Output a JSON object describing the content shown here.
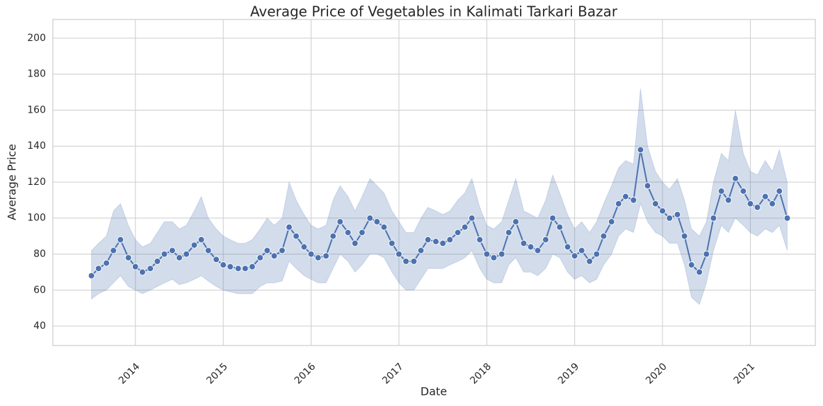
{
  "chart_data": {
    "type": "line",
    "title": "Average Price of Vegetables in Kalimati Tarkari Bazar",
    "xlabel": "Date",
    "ylabel": "Average Price",
    "x": [
      2013.5,
      2013.58,
      2013.67,
      2013.75,
      2013.83,
      2013.92,
      2014.0,
      2014.08,
      2014.17,
      2014.25,
      2014.33,
      2014.42,
      2014.5,
      2014.58,
      2014.67,
      2014.75,
      2014.83,
      2014.92,
      2015.0,
      2015.08,
      2015.17,
      2015.25,
      2015.33,
      2015.42,
      2015.5,
      2015.58,
      2015.67,
      2015.75,
      2015.83,
      2015.92,
      2016.0,
      2016.08,
      2016.17,
      2016.25,
      2016.33,
      2016.42,
      2016.5,
      2016.58,
      2016.67,
      2016.75,
      2016.83,
      2016.92,
      2017.0,
      2017.08,
      2017.17,
      2017.25,
      2017.33,
      2017.42,
      2017.5,
      2017.58,
      2017.67,
      2017.75,
      2017.83,
      2017.92,
      2018.0,
      2018.08,
      2018.17,
      2018.25,
      2018.33,
      2018.42,
      2018.5,
      2018.58,
      2018.67,
      2018.75,
      2018.83,
      2018.92,
      2019.0,
      2019.08,
      2019.17,
      2019.25,
      2019.33,
      2019.42,
      2019.5,
      2019.58,
      2019.67,
      2019.75,
      2019.83,
      2019.92,
      2020.0,
      2020.08,
      2020.17,
      2020.25,
      2020.33,
      2020.42,
      2020.5,
      2020.58,
      2020.67,
      2020.75,
      2020.83,
      2020.92,
      2021.0,
      2021.08,
      2021.17,
      2021.25,
      2021.33,
      2021.42
    ],
    "values": [
      68,
      72,
      75,
      82,
      88,
      78,
      73,
      70,
      72,
      76,
      80,
      82,
      78,
      80,
      85,
      88,
      82,
      77,
      74,
      73,
      72,
      72,
      73,
      78,
      82,
      79,
      82,
      95,
      90,
      84,
      80,
      78,
      79,
      90,
      98,
      92,
      86,
      92,
      100,
      98,
      95,
      86,
      80,
      76,
      76,
      82,
      88,
      87,
      86,
      88,
      92,
      95,
      100,
      88,
      80,
      78,
      80,
      92,
      98,
      86,
      84,
      82,
      88,
      100,
      95,
      84,
      79,
      82,
      76,
      80,
      90,
      98,
      108,
      112,
      110,
      138,
      118,
      108,
      104,
      100,
      102,
      90,
      74,
      70,
      80,
      100,
      115,
      110,
      122,
      115,
      108,
      106,
      112,
      108,
      115,
      100
    ],
    "lower": [
      55,
      58,
      60,
      64,
      68,
      62,
      60,
      58,
      60,
      62,
      64,
      66,
      63,
      64,
      66,
      68,
      65,
      62,
      60,
      59,
      58,
      58,
      58,
      62,
      64,
      64,
      65,
      76,
      72,
      68,
      66,
      64,
      64,
      72,
      80,
      76,
      70,
      74,
      80,
      80,
      78,
      70,
      64,
      60,
      60,
      66,
      72,
      72,
      72,
      74,
      76,
      78,
      82,
      72,
      66,
      64,
      64,
      74,
      78,
      70,
      70,
      68,
      72,
      80,
      78,
      70,
      66,
      68,
      64,
      66,
      74,
      80,
      90,
      94,
      92,
      108,
      98,
      92,
      90,
      86,
      86,
      74,
      56,
      52,
      64,
      82,
      96,
      92,
      100,
      96,
      92,
      90,
      94,
      92,
      96,
      82
    ],
    "upper": [
      82,
      86,
      90,
      104,
      108,
      96,
      88,
      84,
      86,
      92,
      98,
      98,
      94,
      96,
      104,
      112,
      100,
      94,
      90,
      88,
      86,
      86,
      88,
      94,
      100,
      96,
      100,
      120,
      110,
      102,
      96,
      94,
      96,
      110,
      118,
      112,
      104,
      112,
      122,
      118,
      114,
      104,
      98,
      92,
      92,
      100,
      106,
      104,
      102,
      104,
      110,
      114,
      122,
      106,
      96,
      94,
      98,
      110,
      122,
      104,
      102,
      100,
      110,
      124,
      114,
      102,
      94,
      98,
      92,
      98,
      108,
      118,
      128,
      132,
      130,
      172,
      140,
      126,
      120,
      116,
      122,
      110,
      94,
      90,
      98,
      120,
      136,
      132,
      160,
      136,
      126,
      124,
      132,
      126,
      138,
      120
    ],
    "color": "#4c72b0",
    "xlim": [
      2013.06,
      2021.74
    ],
    "xticks": [
      2014,
      2015,
      2016,
      2017,
      2018,
      2019,
      2020,
      2021
    ],
    "ylim": [
      29.2,
      210.4
    ],
    "yticks": [
      40,
      60,
      80,
      100,
      120,
      140,
      160,
      180,
      200
    ],
    "grid": true
  }
}
